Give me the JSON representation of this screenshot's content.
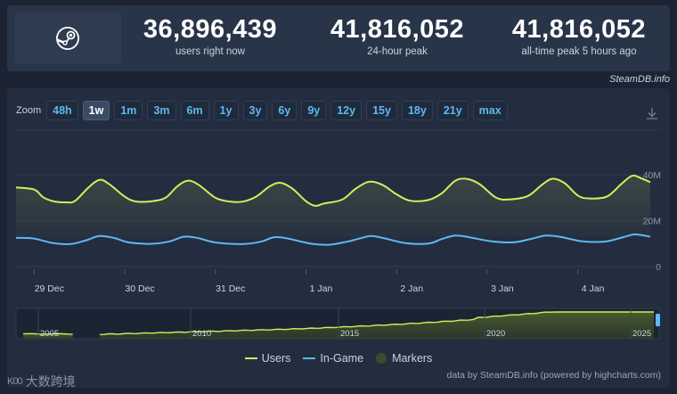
{
  "stats": [
    {
      "value": "36,896,439",
      "label": "users right now"
    },
    {
      "value": "41,816,052",
      "label": "24-hour peak"
    },
    {
      "value": "41,816,052",
      "label": "all-time peak 5 hours ago"
    }
  ],
  "source_label": "SteamDB.info",
  "zoom": {
    "label": "Zoom",
    "buttons": [
      "48h",
      "1w",
      "1m",
      "3m",
      "6m",
      "1y",
      "3y",
      "6y",
      "9y",
      "12y",
      "15y",
      "18y",
      "21y",
      "max"
    ],
    "active": "1w"
  },
  "chart_data": {
    "type": "line",
    "x_ticks": [
      "29 Dec",
      "30 Dec",
      "31 Dec",
      "1 Jan",
      "2 Jan",
      "3 Jan",
      "4 Jan"
    ],
    "y_ticks": [
      "0",
      "20M",
      "40M"
    ],
    "ylim": [
      0,
      42000000
    ],
    "x_range_days": [
      -0.2,
      6.8
    ],
    "series": [
      {
        "name": "Users",
        "color": "#d4ec5e",
        "points": [
          [
            -0.2,
            34.5
          ],
          [
            0.0,
            33.6
          ],
          [
            0.1,
            30.2
          ],
          [
            0.22,
            28.4
          ],
          [
            0.35,
            28.0
          ],
          [
            0.45,
            28.6
          ],
          [
            0.6,
            34.5
          ],
          [
            0.72,
            37.8
          ],
          [
            0.82,
            36.2
          ],
          [
            1.0,
            30.5
          ],
          [
            1.12,
            28.4
          ],
          [
            1.3,
            28.5
          ],
          [
            1.45,
            30.0
          ],
          [
            1.58,
            35.0
          ],
          [
            1.7,
            37.5
          ],
          [
            1.82,
            35.5
          ],
          [
            2.0,
            30.0
          ],
          [
            2.15,
            28.4
          ],
          [
            2.3,
            28.3
          ],
          [
            2.45,
            30.5
          ],
          [
            2.6,
            35.0
          ],
          [
            2.72,
            36.5
          ],
          [
            2.85,
            34.0
          ],
          [
            3.0,
            28.5
          ],
          [
            3.1,
            26.5
          ],
          [
            3.2,
            27.5
          ],
          [
            3.4,
            29.2
          ],
          [
            3.55,
            34.0
          ],
          [
            3.7,
            37.0
          ],
          [
            3.85,
            35.5
          ],
          [
            4.0,
            31.5
          ],
          [
            4.15,
            28.7
          ],
          [
            4.35,
            29.0
          ],
          [
            4.5,
            32.0
          ],
          [
            4.65,
            37.5
          ],
          [
            4.78,
            38.2
          ],
          [
            4.92,
            35.8
          ],
          [
            5.1,
            30.0
          ],
          [
            5.25,
            29.3
          ],
          [
            5.45,
            30.8
          ],
          [
            5.6,
            35.5
          ],
          [
            5.72,
            38.3
          ],
          [
            5.85,
            36.5
          ],
          [
            6.0,
            31.0
          ],
          [
            6.12,
            29.7
          ],
          [
            6.32,
            30.5
          ],
          [
            6.48,
            36.0
          ],
          [
            6.6,
            39.6
          ],
          [
            6.7,
            38.5
          ],
          [
            6.8,
            36.8
          ]
        ]
      },
      {
        "name": "In-Game",
        "color": "#5db8f0",
        "points": [
          [
            -0.2,
            12.5
          ],
          [
            0.0,
            12.2
          ],
          [
            0.2,
            10.3
          ],
          [
            0.4,
            9.8
          ],
          [
            0.58,
            11.5
          ],
          [
            0.72,
            13.3
          ],
          [
            0.88,
            12.5
          ],
          [
            1.05,
            10.5
          ],
          [
            1.3,
            9.9
          ],
          [
            1.5,
            11.0
          ],
          [
            1.65,
            13.0
          ],
          [
            1.8,
            12.5
          ],
          [
            2.0,
            10.5
          ],
          [
            2.3,
            9.8
          ],
          [
            2.5,
            10.8
          ],
          [
            2.65,
            12.8
          ],
          [
            2.8,
            12.2
          ],
          [
            3.05,
            10.0
          ],
          [
            3.25,
            9.5
          ],
          [
            3.45,
            10.8
          ],
          [
            3.6,
            12.3
          ],
          [
            3.72,
            13.3
          ],
          [
            3.88,
            12.2
          ],
          [
            4.1,
            10.2
          ],
          [
            4.35,
            10.0
          ],
          [
            4.5,
            12.0
          ],
          [
            4.65,
            13.5
          ],
          [
            4.8,
            12.8
          ],
          [
            5.05,
            11.0
          ],
          [
            5.3,
            10.6
          ],
          [
            5.5,
            12.2
          ],
          [
            5.65,
            13.5
          ],
          [
            5.8,
            13.0
          ],
          [
            6.05,
            11.0
          ],
          [
            6.3,
            10.9
          ],
          [
            6.5,
            12.8
          ],
          [
            6.62,
            14.0
          ],
          [
            6.72,
            13.6
          ],
          [
            6.8,
            13.0
          ]
        ]
      }
    ],
    "navigator": {
      "x_ticks": [
        "2005",
        "2010",
        "2015",
        "2020",
        "2025"
      ]
    }
  },
  "legend": [
    {
      "name": "Users",
      "color": "#d4ec5e",
      "shape": "line"
    },
    {
      "name": "In-Game",
      "color": "#5db8f0",
      "shape": "line"
    },
    {
      "name": "Markers",
      "color": "#3c4a2e",
      "shape": "dot"
    }
  ],
  "credits": "data by SteamDB.info (powered by highcharts.com)",
  "watermark": {
    "text": "大数跨境",
    "logo": "K00"
  }
}
